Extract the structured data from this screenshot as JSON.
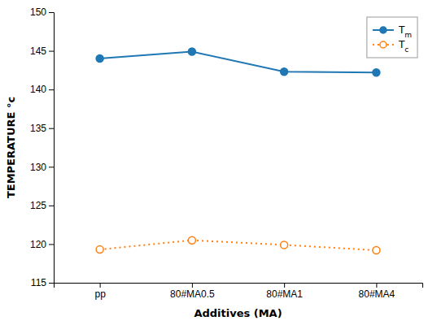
{
  "chart_data": {
    "type": "line",
    "xlabel": "Additives (MA)",
    "ylabel": "TEMPERATURE °c",
    "categories": [
      "pp",
      "80#MA0.5",
      "80#MA1",
      "80#MA4"
    ],
    "series": [
      {
        "name": "Tm",
        "values": [
          144.0,
          144.9,
          142.3,
          142.2
        ],
        "marker": "circle",
        "line_style": "solid"
      },
      {
        "name": "Tc",
        "values": [
          119.3,
          120.5,
          119.9,
          119.2
        ],
        "marker": "circle-open",
        "line_style": "dotted"
      }
    ],
    "ylim": [
      115,
      150
    ],
    "yticks": [
      115,
      120,
      125,
      130,
      135,
      140,
      145,
      150
    ],
    "grid": false,
    "legend": "upper right"
  }
}
